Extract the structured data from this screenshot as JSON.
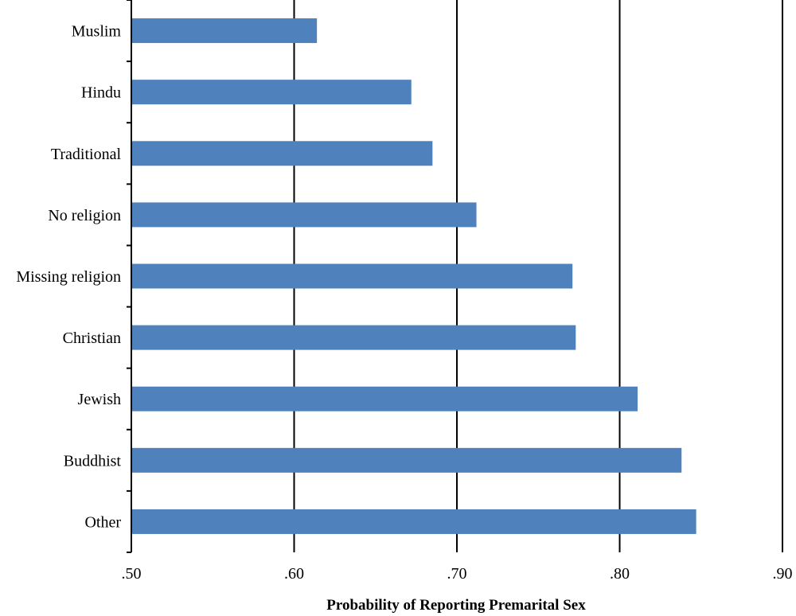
{
  "chart_data": {
    "type": "bar",
    "orientation": "horizontal",
    "categories": [
      "Muslim",
      "Hindu",
      "Traditional",
      "No religion",
      "Missing religion",
      "Christian",
      "Jewish",
      "Buddhist",
      "Other"
    ],
    "values": [
      0.614,
      0.672,
      0.685,
      0.712,
      0.771,
      0.773,
      0.811,
      0.838,
      0.847
    ],
    "xlim": [
      0.5,
      0.9
    ],
    "xticks": [
      0.5,
      0.6,
      0.7,
      0.8,
      0.9
    ],
    "xtick_labels": [
      ".50",
      ".60",
      ".70",
      ".80",
      ".90"
    ],
    "xlabel": "Probability of Reporting Premarital Sex",
    "ylabel": "",
    "title": "",
    "grid": "vertical",
    "bar_color": "#4f81bd"
  }
}
